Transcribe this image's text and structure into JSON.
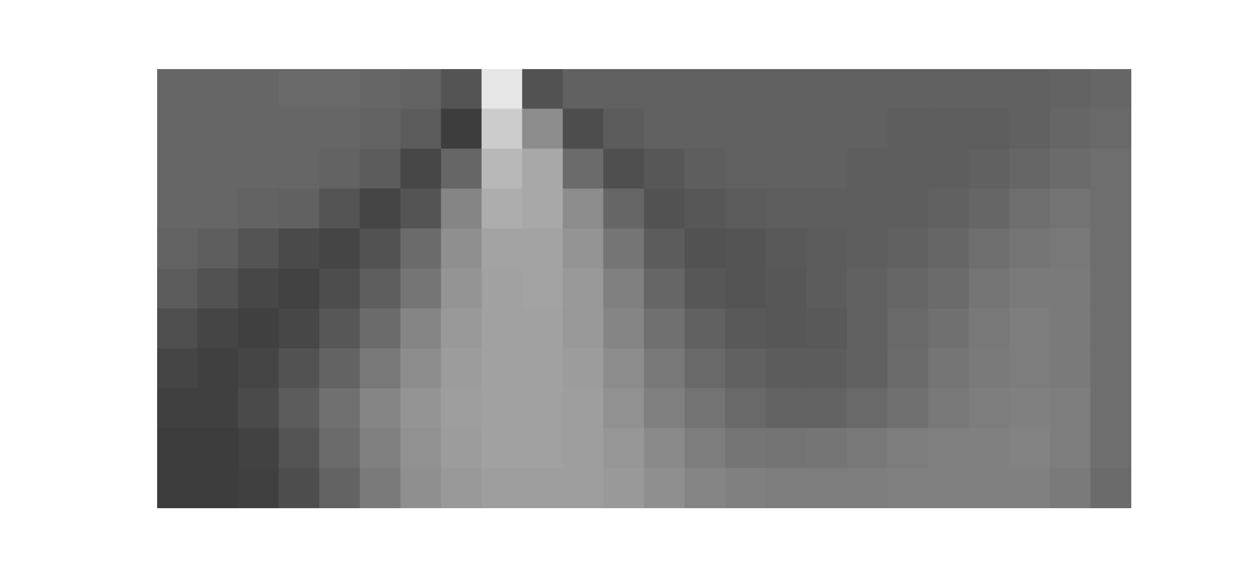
{
  "chart_data": {
    "type": "heatmap",
    "color": "gray",
    "tick_labels": false,
    "zlim": [
      0,
      1
    ],
    "cells": [
      [
        0.4,
        0.4,
        0.4,
        0.41,
        0.41,
        0.4,
        0.39,
        0.33,
        0.9,
        0.32,
        0.38,
        0.38,
        0.38,
        0.38,
        0.38,
        0.38,
        0.38,
        0.38,
        0.38,
        0.38,
        0.38,
        0.38,
        0.39,
        0.4
      ],
      [
        0.4,
        0.4,
        0.4,
        0.4,
        0.4,
        0.39,
        0.36,
        0.24,
        0.8,
        0.55,
        0.3,
        0.36,
        0.38,
        0.38,
        0.38,
        0.38,
        0.38,
        0.38,
        0.37,
        0.37,
        0.37,
        0.38,
        0.4,
        0.41
      ],
      [
        0.4,
        0.4,
        0.4,
        0.4,
        0.39,
        0.36,
        0.28,
        0.4,
        0.72,
        0.66,
        0.42,
        0.31,
        0.34,
        0.37,
        0.38,
        0.38,
        0.38,
        0.37,
        0.37,
        0.37,
        0.38,
        0.4,
        0.42,
        0.43
      ],
      [
        0.4,
        0.4,
        0.39,
        0.38,
        0.33,
        0.27,
        0.33,
        0.52,
        0.68,
        0.66,
        0.55,
        0.4,
        0.32,
        0.34,
        0.36,
        0.37,
        0.37,
        0.37,
        0.37,
        0.38,
        0.4,
        0.43,
        0.45,
        0.43
      ],
      [
        0.39,
        0.37,
        0.33,
        0.29,
        0.27,
        0.32,
        0.42,
        0.56,
        0.64,
        0.64,
        0.58,
        0.46,
        0.36,
        0.32,
        0.33,
        0.35,
        0.36,
        0.37,
        0.38,
        0.4,
        0.43,
        0.46,
        0.47,
        0.43
      ],
      [
        0.36,
        0.32,
        0.28,
        0.26,
        0.3,
        0.37,
        0.46,
        0.58,
        0.63,
        0.64,
        0.6,
        0.5,
        0.4,
        0.34,
        0.33,
        0.34,
        0.36,
        0.38,
        0.4,
        0.42,
        0.46,
        0.48,
        0.48,
        0.43
      ],
      [
        0.31,
        0.27,
        0.25,
        0.28,
        0.34,
        0.42,
        0.52,
        0.6,
        0.63,
        0.63,
        0.6,
        0.52,
        0.44,
        0.38,
        0.35,
        0.34,
        0.35,
        0.38,
        0.41,
        0.44,
        0.47,
        0.49,
        0.48,
        0.43
      ],
      [
        0.27,
        0.25,
        0.27,
        0.32,
        0.39,
        0.47,
        0.55,
        0.61,
        0.63,
        0.63,
        0.61,
        0.55,
        0.47,
        0.41,
        0.38,
        0.36,
        0.36,
        0.38,
        0.42,
        0.46,
        0.48,
        0.49,
        0.48,
        0.43
      ],
      [
        0.25,
        0.25,
        0.29,
        0.36,
        0.44,
        0.52,
        0.58,
        0.62,
        0.63,
        0.63,
        0.62,
        0.57,
        0.5,
        0.45,
        0.41,
        0.39,
        0.39,
        0.41,
        0.44,
        0.47,
        0.49,
        0.5,
        0.49,
        0.43
      ],
      [
        0.24,
        0.24,
        0.26,
        0.33,
        0.42,
        0.5,
        0.57,
        0.61,
        0.63,
        0.63,
        0.62,
        0.59,
        0.54,
        0.49,
        0.46,
        0.45,
        0.46,
        0.47,
        0.49,
        0.5,
        0.5,
        0.51,
        0.49,
        0.43
      ],
      [
        0.24,
        0.24,
        0.25,
        0.3,
        0.39,
        0.48,
        0.56,
        0.6,
        0.62,
        0.62,
        0.62,
        0.6,
        0.56,
        0.52,
        0.5,
        0.49,
        0.49,
        0.49,
        0.5,
        0.5,
        0.5,
        0.5,
        0.48,
        0.42
      ]
    ]
  }
}
